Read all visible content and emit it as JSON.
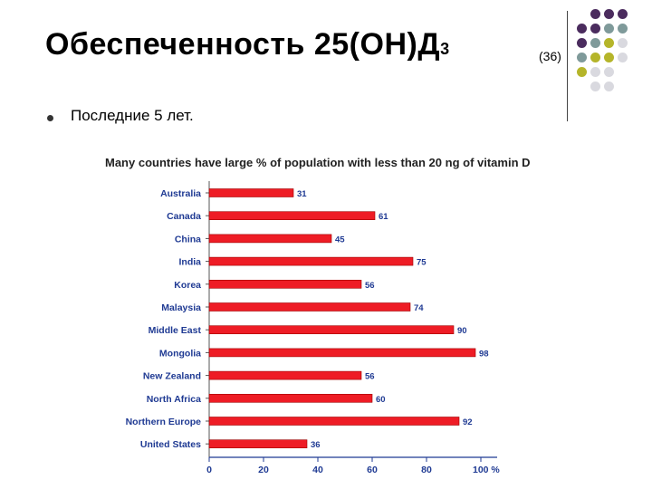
{
  "slide": {
    "title_main": "Обеспеченность  25(ОН)Д",
    "title_sub": "3",
    "slide_number": "(36)",
    "bullet": "Последние 5 лет."
  },
  "colors": {
    "bar": "#ee1c25",
    "bar_border": "#a00000",
    "axis_text": "#1f3a93",
    "decor_dots": [
      "#4b2c5e",
      "#7f9a9a",
      "#b5b52a",
      "#d9d9df"
    ]
  },
  "chart_data": {
    "type": "bar",
    "orientation": "horizontal",
    "title": "Many countries have large % of population with less than 20 ng of vitamin D",
    "categories": [
      "Australia",
      "Canada",
      "China",
      "India",
      "Korea",
      "Malaysia",
      "Middle East",
      "Mongolia",
      "New Zealand",
      "North Africa",
      "Northern Europe",
      "United States"
    ],
    "values": [
      31,
      61,
      45,
      75,
      56,
      74,
      90,
      98,
      56,
      60,
      92,
      36
    ],
    "xlim": [
      0,
      100
    ],
    "xticks": [
      "0",
      "20",
      "40",
      "60",
      "80",
      "100 %"
    ],
    "grid": false,
    "legend": "none"
  }
}
